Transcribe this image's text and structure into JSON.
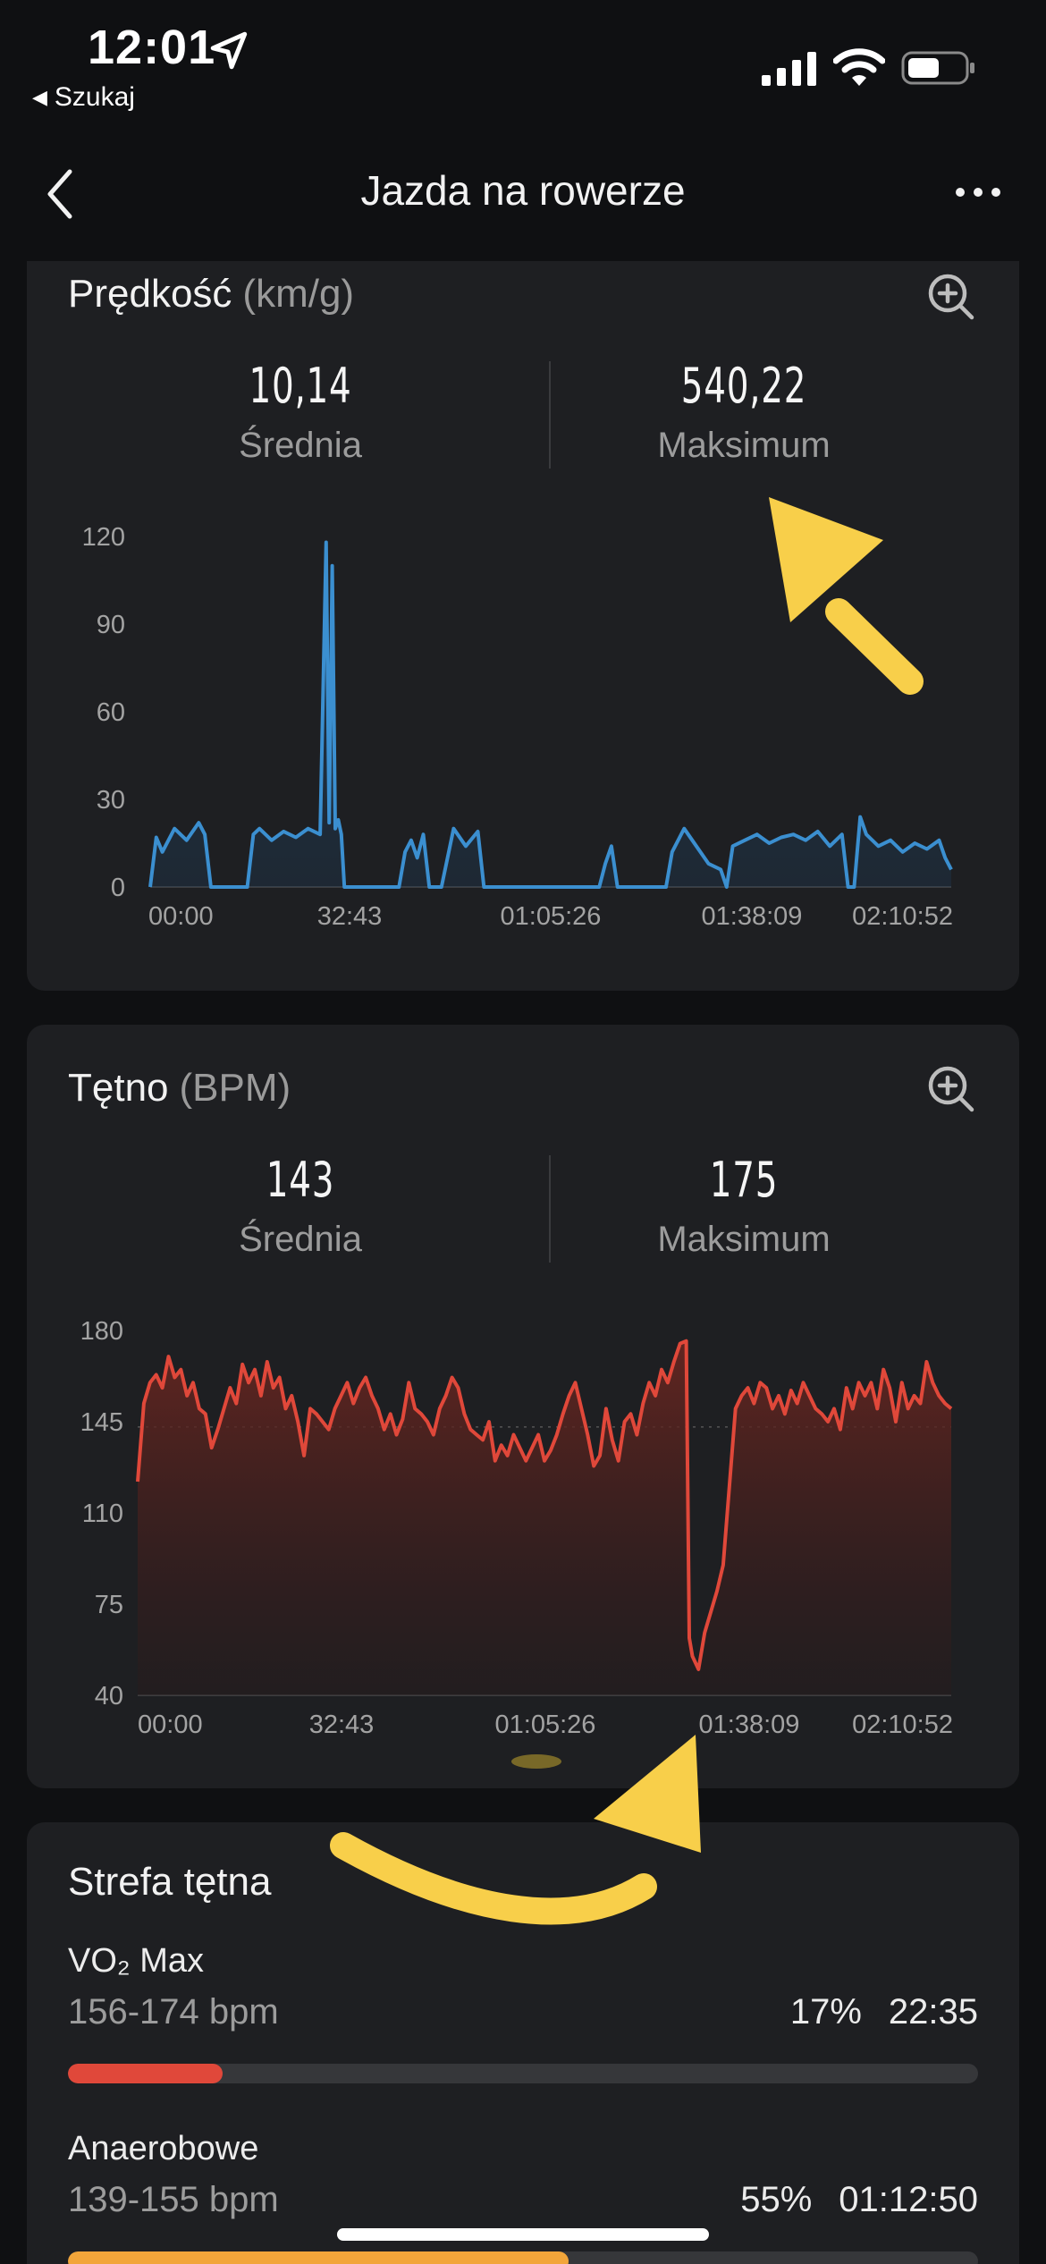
{
  "status_bar": {
    "time": "12:01",
    "back_app": "Szukaj",
    "icons": [
      "location-arrow-icon",
      "signal-icon",
      "wifi-icon",
      "battery-icon"
    ]
  },
  "nav": {
    "title": "Jazda na rowerze",
    "back_icon": "chevron-left-icon",
    "more_icon": "more-dots-icon"
  },
  "speed": {
    "title": "Prędkość",
    "unit": "(km/g)",
    "avg_value": "10,14",
    "avg_label": "Średnia",
    "max_value": "540,22",
    "max_label": "Maksimum",
    "color": "#3b8fd0"
  },
  "heart": {
    "title": "Tętno",
    "unit": "(BPM)",
    "avg_value": "143",
    "avg_label": "Średnia",
    "max_value": "175",
    "max_label": "Maksimum",
    "color": "#e0483a"
  },
  "chart_data": [
    {
      "type": "area",
      "title": "Prędkość (km/g)",
      "xlabel": "",
      "ylabel": "",
      "x_ticks": [
        "00:00",
        "32:43",
        "01:05:26",
        "01:38:09",
        "02:10:52"
      ],
      "y_ticks": [
        0,
        30,
        60,
        90,
        120
      ],
      "ylim": [
        0,
        120
      ],
      "x_minutes": [
        0,
        1,
        2,
        4,
        6,
        8,
        9,
        10,
        11,
        12,
        14,
        16,
        17,
        18,
        20,
        22,
        24,
        26,
        28,
        29,
        29.5,
        30,
        30.5,
        31,
        31.5,
        32,
        33,
        34,
        36,
        38,
        40,
        41,
        42,
        43,
        44,
        45,
        46,
        47,
        48,
        50,
        52,
        54,
        55,
        56,
        58,
        60,
        61,
        62,
        64,
        66,
        68,
        70,
        72,
        74,
        75,
        76,
        77,
        78,
        80,
        82,
        84,
        85,
        86,
        88,
        90,
        92,
        94,
        95,
        96,
        98,
        100,
        102,
        104,
        106,
        108,
        110,
        112,
        114,
        115,
        116,
        117,
        118,
        120,
        122,
        124,
        126,
        128,
        130,
        131,
        132
      ],
      "values": [
        0,
        17,
        12,
        20,
        16,
        22,
        18,
        0,
        0,
        0,
        0,
        0,
        18,
        20,
        16,
        19,
        17,
        20,
        18,
        118,
        22,
        110,
        20,
        23,
        18,
        0,
        0,
        0,
        0,
        0,
        0,
        0,
        12,
        16,
        10,
        18,
        0,
        0,
        0,
        20,
        14,
        19,
        0,
        0,
        0,
        0,
        0,
        0,
        0,
        0,
        0,
        0,
        0,
        0,
        8,
        14,
        0,
        0,
        0,
        0,
        0,
        0,
        12,
        20,
        14,
        8,
        6,
        0,
        14,
        16,
        18,
        15,
        17,
        18,
        16,
        19,
        14,
        18,
        0,
        0,
        24,
        18,
        14,
        16,
        12,
        15,
        13,
        16,
        10,
        6
      ]
    },
    {
      "type": "area",
      "title": "Tętno (BPM)",
      "xlabel": "",
      "ylabel": "",
      "x_ticks": [
        "00:00",
        "32:43",
        "01:05:26",
        "01:38:09",
        "02:10:52"
      ],
      "y_ticks": [
        40,
        75,
        110,
        145,
        180
      ],
      "ylim": [
        40,
        180
      ],
      "x_minutes": [
        0,
        1,
        2,
        3,
        4,
        5,
        6,
        7,
        8,
        9,
        10,
        11,
        12,
        13,
        14,
        15,
        16,
        17,
        18,
        19,
        20,
        21,
        22,
        23,
        24,
        25,
        26,
        27,
        28,
        29,
        30,
        31,
        32,
        33,
        34,
        35,
        36,
        37,
        38,
        39,
        40,
        41,
        42,
        43,
        44,
        45,
        46,
        47,
        48,
        49,
        50,
        51,
        52,
        53,
        54,
        55,
        56,
        57,
        58,
        59,
        60,
        61,
        62,
        63,
        64,
        65,
        66,
        67,
        68,
        69,
        70,
        71,
        72,
        73,
        74,
        75,
        76,
        77,
        78,
        79,
        80,
        81,
        82,
        83,
        84,
        85,
        86,
        87,
        88,
        89,
        89.5,
        90,
        91,
        92,
        93,
        94,
        95,
        96,
        97,
        98,
        99,
        100,
        101,
        102,
        103,
        104,
        105,
        106,
        107,
        108,
        109,
        110,
        111,
        112,
        113,
        114,
        115,
        116,
        117,
        118,
        119,
        120,
        121,
        122,
        123,
        124,
        125,
        126,
        127,
        128,
        129,
        130,
        131,
        132
      ],
      "values": [
        122,
        152,
        160,
        163,
        158,
        170,
        162,
        165,
        155,
        160,
        150,
        148,
        135,
        142,
        150,
        158,
        152,
        167,
        160,
        165,
        155,
        168,
        158,
        162,
        150,
        155,
        145,
        132,
        150,
        148,
        145,
        142,
        150,
        155,
        160,
        152,
        158,
        162,
        155,
        150,
        142,
        148,
        140,
        146,
        160,
        150,
        148,
        145,
        140,
        150,
        155,
        162,
        158,
        148,
        142,
        140,
        138,
        145,
        130,
        136,
        132,
        140,
        135,
        130,
        135,
        140,
        130,
        134,
        140,
        148,
        155,
        160,
        150,
        140,
        128,
        132,
        150,
        138,
        130,
        145,
        148,
        140,
        152,
        160,
        155,
        165,
        160,
        168,
        175,
        176,
        62,
        55,
        50,
        64,
        72,
        80,
        90,
        120,
        150,
        155,
        158,
        152,
        160,
        158,
        150,
        155,
        148,
        157,
        152,
        160,
        155,
        150,
        148,
        145,
        150,
        142,
        158,
        150,
        160,
        155,
        160,
        150,
        165,
        158,
        145,
        160,
        150,
        155,
        152,
        168,
        160,
        155,
        152,
        150
      ]
    }
  ],
  "heart_zone": {
    "title": "Strefa tętna",
    "zones": [
      {
        "name": "VO₂ Max",
        "range": "156-174 bpm",
        "percent": "17%",
        "duration": "22:35",
        "fraction": 0.17,
        "color": "#e0483a"
      },
      {
        "name": "Anaerobowe",
        "range": "139-155 bpm",
        "percent": "55%",
        "duration": "01:12:50",
        "fraction": 0.55,
        "color": "#f2a53a"
      }
    ]
  },
  "annotations": {
    "arrow_color": "#f8cf4a"
  }
}
